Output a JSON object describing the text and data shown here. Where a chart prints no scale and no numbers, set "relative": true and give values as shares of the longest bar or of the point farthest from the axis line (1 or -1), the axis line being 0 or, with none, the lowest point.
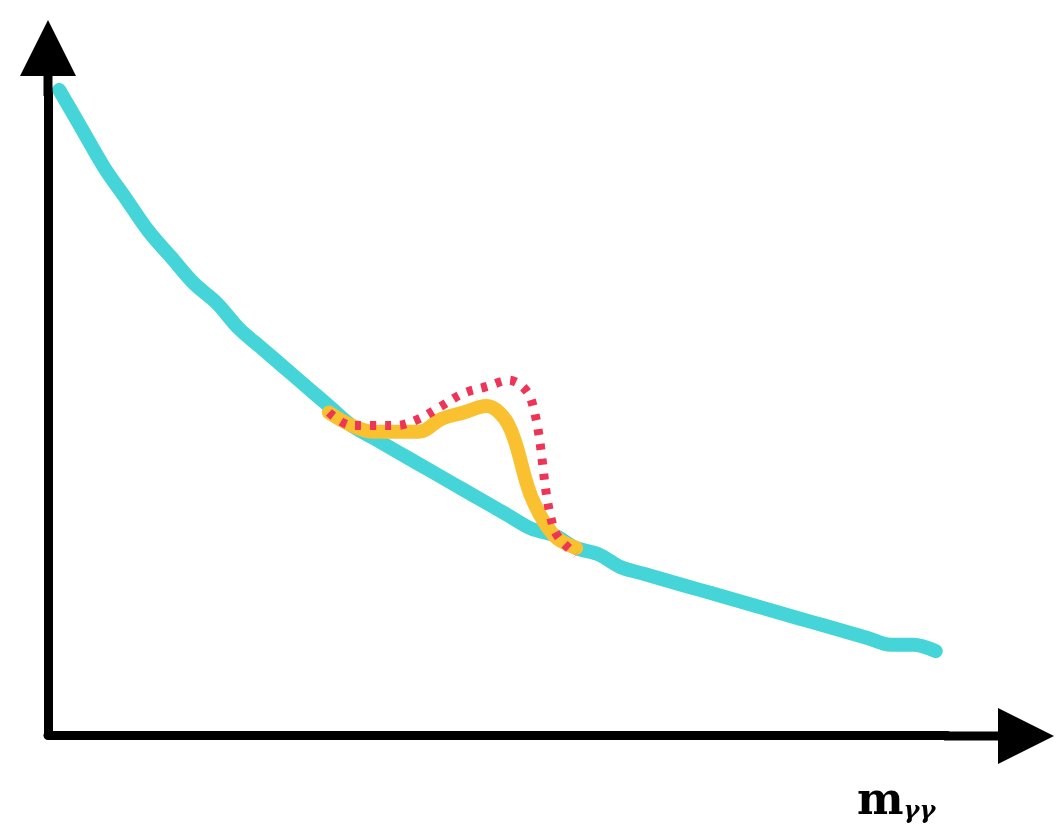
{
  "chart_data": {
    "type": "line",
    "relative": true,
    "xlabel": "m$_{γγ}$",
    "grid": false,
    "marker": "none",
    "line_style": "solid",
    "categories": [
      null,
      null,
      null,
      null,
      null,
      null,
      null,
      null,
      null,
      null,
      null,
      null,
      null,
      null,
      null,
      null,
      null,
      null,
      null,
      null,
      null,
      null,
      null,
      null,
      null,
      null,
      null,
      null,
      null,
      null,
      null,
      null,
      null,
      null,
      null,
      null,
      null,
      null,
      null,
      null
    ],
    "series": [
      {
        "color": "#45d4d8",
        "values": [
          1.0,
          0.94,
          0.88,
          0.83,
          0.78,
          0.74,
          0.7,
          0.67,
          0.63,
          0.6,
          0.57,
          0.54,
          0.51,
          0.48,
          0.46,
          0.44,
          0.42,
          0.4,
          0.38,
          0.36,
          0.34,
          0.32,
          0.31,
          0.29,
          0.28,
          0.26,
          0.25,
          0.24,
          0.23,
          0.22,
          0.21,
          0.2,
          0.19,
          0.18,
          0.17,
          0.16,
          0.15,
          0.14,
          0.14,
          0.13
        ]
      },
      {
        "color": "#f9c030",
        "values": [
          null,
          null,
          null,
          null,
          null,
          null,
          null,
          null,
          null,
          null,
          null,
          null,
          0.5,
          0.48,
          0.47,
          0.47,
          0.47,
          0.49,
          0.5,
          0.51,
          0.48,
          0.37,
          0.31,
          0.29,
          null,
          null,
          null,
          null,
          null,
          null,
          null,
          null,
          null,
          null,
          null,
          null,
          null,
          null,
          null,
          null
        ]
      },
      {
        "color": "#ee3557",
        "line_style": "dotted",
        "values": [
          null,
          null,
          null,
          null,
          null,
          null,
          null,
          null,
          null,
          null,
          null,
          null,
          0.5,
          0.48,
          0.48,
          0.48,
          0.49,
          0.51,
          0.53,
          0.54,
          0.55,
          0.52,
          0.32,
          0.28,
          null,
          null,
          null,
          null,
          null,
          null,
          null,
          null,
          null,
          null,
          null,
          null,
          null,
          null,
          null,
          null
        ]
      }
    ]
  }
}
